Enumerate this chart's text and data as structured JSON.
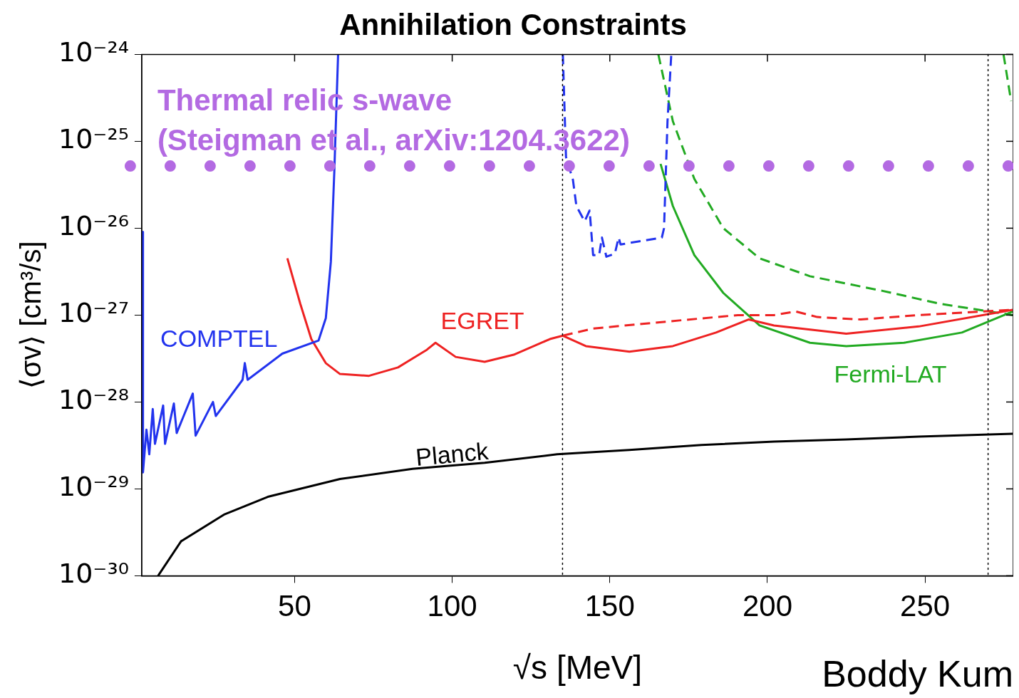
{
  "chart_data": {
    "type": "line",
    "title": "Annihilation Constraints",
    "xlabel": "√s [MeV]",
    "ylabel": "⟨σv⟩ [cm³/s]",
    "xlim": [
      1.5,
      278
    ],
    "xticks": [
      50,
      100,
      150,
      200,
      250
    ],
    "ylim": [
      1e-30,
      1e-24
    ],
    "yticks": [
      {
        "value": 1e-24,
        "label": "10⁻²⁴"
      },
      {
        "value": 1e-25,
        "label": "10⁻²⁵"
      },
      {
        "value": 1e-26,
        "label": "10⁻²⁶"
      },
      {
        "value": 1e-27,
        "label": "10⁻²⁷"
      },
      {
        "value": 1e-28,
        "label": "10⁻²⁸"
      },
      {
        "value": 1e-29,
        "label": "10⁻²⁹"
      },
      {
        "value": 1e-30,
        "label": "10⁻³⁰"
      }
    ],
    "log": "y",
    "grid": false,
    "legend": false,
    "marker": "none",
    "series": [
      {
        "name": "COMPTEL",
        "color": "#2233ee",
        "line_style": "solid",
        "x": [
          1.8,
          1.9,
          3.0,
          3.9,
          5.0,
          5.7,
          8.3,
          8.9,
          11.7,
          12.6,
          17.7,
          18.6,
          24.1,
          25.0,
          33.5,
          34.2,
          35.1,
          46.1,
          57.6,
          59.9,
          61.5,
          62.6,
          63.8
        ],
        "values": [
          9.1e-27,
          1.55e-29,
          4.8e-29,
          2.5e-29,
          8.3e-29,
          3.3e-29,
          9.1e-29,
          3.3e-29,
          9.6e-29,
          4.4e-29,
          1.25e-28,
          4.1e-29,
          1e-28,
          6.9e-29,
          1.8e-28,
          2.8e-28,
          1.8e-28,
          3.6e-28,
          5.1e-28,
          9.2e-28,
          4.1e-27,
          4.5e-26,
          1e-24
        ]
      },
      {
        "color": "#2233ee",
        "line_style": "dashed",
        "x": [
          135.1,
          136.1,
          138.3,
          139.4,
          142.0,
          143.6,
          144.7,
          146.6,
          147.5,
          148.9,
          151.6,
          152.8,
          153.4,
          166.5,
          167.2,
          168.3,
          169.5
        ],
        "values": [
          1e-24,
          6.6e-26,
          3.6e-26,
          1.8e-26,
          1.2e-26,
          1.6e-26,
          4.9e-27,
          4.9e-27,
          7.8e-27,
          4.7e-27,
          5.1e-27,
          7.8e-27,
          6.5e-27,
          7.8e-27,
          1e-26,
          1.7e-25,
          1e-24
        ]
      },
      {
        "name": "EGRET",
        "color": "#ee2222",
        "line_style": "solid",
        "x": [
          47.7,
          51.8,
          55.3,
          59.9,
          64.4,
          73.6,
          82.8,
          92.0,
          94.7,
          101.1,
          110.3,
          119.5,
          131.0,
          135.1,
          142.4,
          156.2,
          170.0,
          183.7,
          194.0,
          202.1,
          225.0,
          248.0,
          277.8
        ],
        "values": [
          4.5e-27,
          1.35e-27,
          5.3e-28,
          2.8e-28,
          2.1e-28,
          2e-28,
          2.5e-28,
          4e-28,
          4.8e-28,
          3.3e-28,
          2.9e-28,
          3.5e-28,
          5.3e-28,
          5.8e-28,
          4.4e-28,
          3.8e-28,
          4.4e-28,
          6.3e-28,
          8.9e-28,
          7.6e-28,
          6.1e-28,
          7.4e-28,
          1.15e-27
        ]
      },
      {
        "color": "#ee2222",
        "line_style": "dashed",
        "x": [
          135.1,
          144.7,
          167.7,
          190.6,
          202.1,
          209.0,
          215.8,
          229.6,
          248.0,
          277.8
        ],
        "values": [
          5.8e-28,
          7e-28,
          8.4e-28,
          1e-27,
          1e-27,
          1.1e-27,
          9.5e-28,
          8.9e-28,
          1e-27,
          1.15e-27
        ]
      },
      {
        "name": "Fermi-LAT",
        "color": "#22aa22",
        "line_style": "solid",
        "x": [
          166.1,
          170.0,
          176.8,
          186.0,
          197.5,
          213.5,
          225.0,
          243.3,
          261.7,
          277.8
        ],
        "values": [
          5.5e-26,
          1.8e-26,
          4.9e-27,
          1.8e-27,
          7.6e-28,
          4.8e-28,
          4.4e-28,
          4.8e-28,
          6.3e-28,
          1.1e-27
        ]
      },
      {
        "color": "#22aa22",
        "line_style": "dashed",
        "x": [
          165.4,
          170.0,
          176.8,
          186.0,
          197.5,
          213.5,
          236.5,
          254.8,
          277.8
        ],
        "values": [
          1e-24,
          1.7e-25,
          3.7e-26,
          1e-26,
          4.5e-27,
          2.8e-27,
          1.9e-27,
          1.35e-27,
          1e-27
        ]
      },
      {
        "color": "#22aa22",
        "line_style": "dashed",
        "x": [
          274.9,
          277.3
        ],
        "values": [
          1e-24,
          2.9e-25
        ]
      },
      {
        "name": "Planck",
        "color": "#000000",
        "line_style": "solid",
        "x": [
          6.7,
          14.0,
          27.8,
          41.5,
          64.4,
          87.4,
          110.3,
          133.3,
          156.2,
          179.1,
          202.1,
          225.0,
          248.0,
          277.8
        ],
        "values": [
          1e-30,
          2.5e-30,
          5.1e-30,
          8.1e-30,
          1.3e-29,
          1.7e-29,
          2e-29,
          2.5e-29,
          2.8e-29,
          3.2e-29,
          3.5e-29,
          3.7e-29,
          4e-29,
          4.3e-29
        ]
      }
    ],
    "ref_lines": [
      {
        "axis": "y",
        "value": 5.2e-26,
        "color": "#b36ae2",
        "line_style": "dotted"
      },
      {
        "axis": "x",
        "value": 135,
        "color": "#000000",
        "line_style": "dotted"
      },
      {
        "axis": "x",
        "value": 270,
        "color": "#000000",
        "line_style": "dotted"
      }
    ],
    "annotations": [
      {
        "text": "Thermal relic s-wave\n(Steigman et al., arXiv:1204.3622)",
        "y": 5.2e-26
      },
      "Boddy Kum"
    ]
  }
}
